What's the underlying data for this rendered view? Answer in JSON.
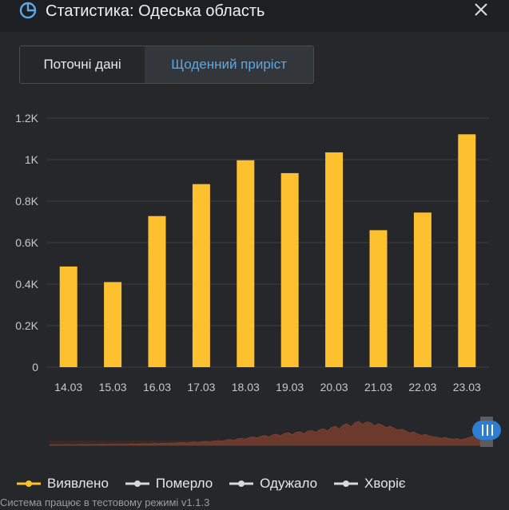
{
  "header": {
    "title": "Статистика: Одеська область",
    "icon": "pie-chart-icon",
    "close_icon": "close-icon"
  },
  "tabs": [
    {
      "label": "Поточні дані",
      "active": false
    },
    {
      "label": "Щоденний приріст",
      "active": true
    }
  ],
  "colors": {
    "background": "#25272b",
    "header_bg": "#1d1f22",
    "accent_blue": "#5aa9e6",
    "bar": "#fdc12f",
    "navigator_area": "#6b3a2c",
    "legend_inactive": "#d8d8d8"
  },
  "chart_data": {
    "type": "bar",
    "categories": [
      "14.03",
      "15.03",
      "16.03",
      "17.03",
      "18.03",
      "19.03",
      "20.03",
      "21.03",
      "22.03",
      "23.03"
    ],
    "series": [
      {
        "name": "Виявлено",
        "values": [
          485,
          410,
          728,
          882,
          997,
          935,
          1035,
          660,
          745,
          1122
        ]
      }
    ],
    "y_ticks": [
      {
        "value": 0,
        "label": "0"
      },
      {
        "value": 200,
        "label": "0.2K"
      },
      {
        "value": 400,
        "label": "0.4K"
      },
      {
        "value": 600,
        "label": "0.6K"
      },
      {
        "value": 800,
        "label": "0.8K"
      },
      {
        "value": 1000,
        "label": "1K"
      },
      {
        "value": 1200,
        "label": "1.2K"
      }
    ],
    "ylim": [
      0,
      1200
    ],
    "grid": true,
    "title": "",
    "xlabel": "",
    "ylabel": ""
  },
  "navigator": {
    "history": [
      2,
      2,
      3,
      2,
      3,
      3,
      2,
      3,
      4,
      3,
      3,
      4,
      3,
      4,
      4,
      3,
      5,
      4,
      5,
      4,
      5,
      6,
      5,
      6,
      7,
      6,
      7,
      8,
      7,
      9,
      8,
      10,
      9,
      11,
      12,
      10,
      13,
      14,
      12,
      15,
      17,
      14,
      18,
      20,
      17,
      22,
      25,
      21,
      27,
      30,
      26,
      33,
      36,
      31,
      38,
      42,
      35,
      44,
      47,
      40,
      50,
      53,
      45,
      55,
      57,
      49,
      60,
      62,
      55,
      66,
      70,
      60,
      75,
      80,
      68,
      85,
      90,
      78,
      95,
      100,
      88,
      98,
      95,
      82,
      90,
      85,
      74,
      80,
      72,
      64,
      68,
      60,
      52,
      56,
      48,
      42,
      46,
      40,
      36,
      34,
      30,
      33,
      29,
      26,
      28,
      24,
      27,
      32,
      38,
      45,
      55
    ]
  },
  "legend": [
    {
      "label": "Виявлено",
      "color": "#fdc12f",
      "active": true
    },
    {
      "label": "Померло",
      "color": "#d8d8d8",
      "active": false
    },
    {
      "label": "Одужало",
      "color": "#d8d8d8",
      "active": false
    },
    {
      "label": "Хворіє",
      "color": "#d8d8d8",
      "active": false
    }
  ],
  "footer": {
    "text": "Система працює в тестовому режимі v1.1.3"
  }
}
